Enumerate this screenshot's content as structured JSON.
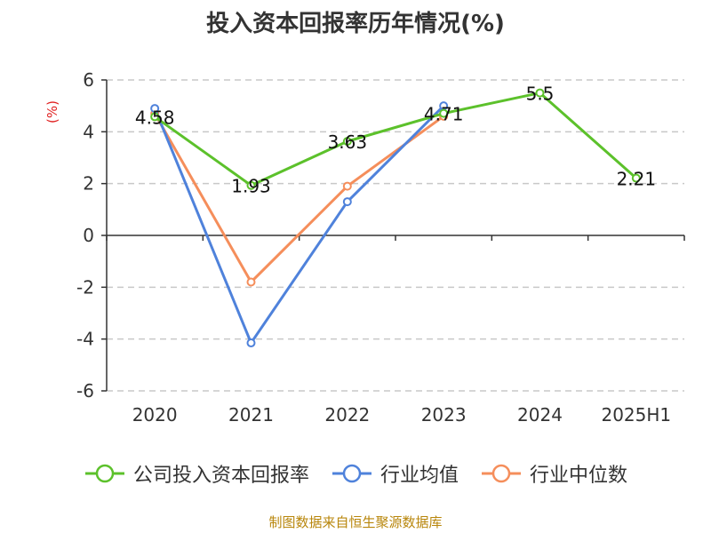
{
  "title": "投入资本回报率历年情况(%)",
  "source_text": "制图数据来自恒生聚源数据库",
  "colors": {
    "company": "#5CC12B",
    "industry_avg": "#4F82DB",
    "industry_median": "#F58E5B",
    "unit": "#E02020",
    "source": "#B8860B",
    "grid": "#C8C8C8",
    "axis": "#333333"
  },
  "chart_data": {
    "type": "line",
    "title": "投入资本回报率历年情况(%)",
    "ylabel": "(%)",
    "xlabel": "",
    "categories": [
      "2020",
      "2021",
      "2022",
      "2023",
      "2024",
      "2025H1"
    ],
    "ylim": [
      -6,
      6
    ],
    "yticks": [
      -6,
      -4,
      -2,
      0,
      2,
      4,
      6
    ],
    "grid": true,
    "legend_position": "bottom",
    "series": [
      {
        "name": "公司投入资本回报率",
        "key": "company",
        "values": [
          4.58,
          1.93,
          3.63,
          4.71,
          5.5,
          2.21
        ],
        "labels": [
          "4.58",
          "1.93",
          "3.63",
          "4.71",
          "5.5",
          "2.21"
        ]
      },
      {
        "name": "行业均值",
        "key": "industry_avg",
        "values": [
          4.9,
          -4.15,
          1.3,
          5.0,
          null,
          null
        ]
      },
      {
        "name": "行业中位数",
        "key": "industry_median",
        "values": [
          4.7,
          -1.8,
          1.9,
          4.6,
          null,
          null
        ]
      }
    ]
  }
}
